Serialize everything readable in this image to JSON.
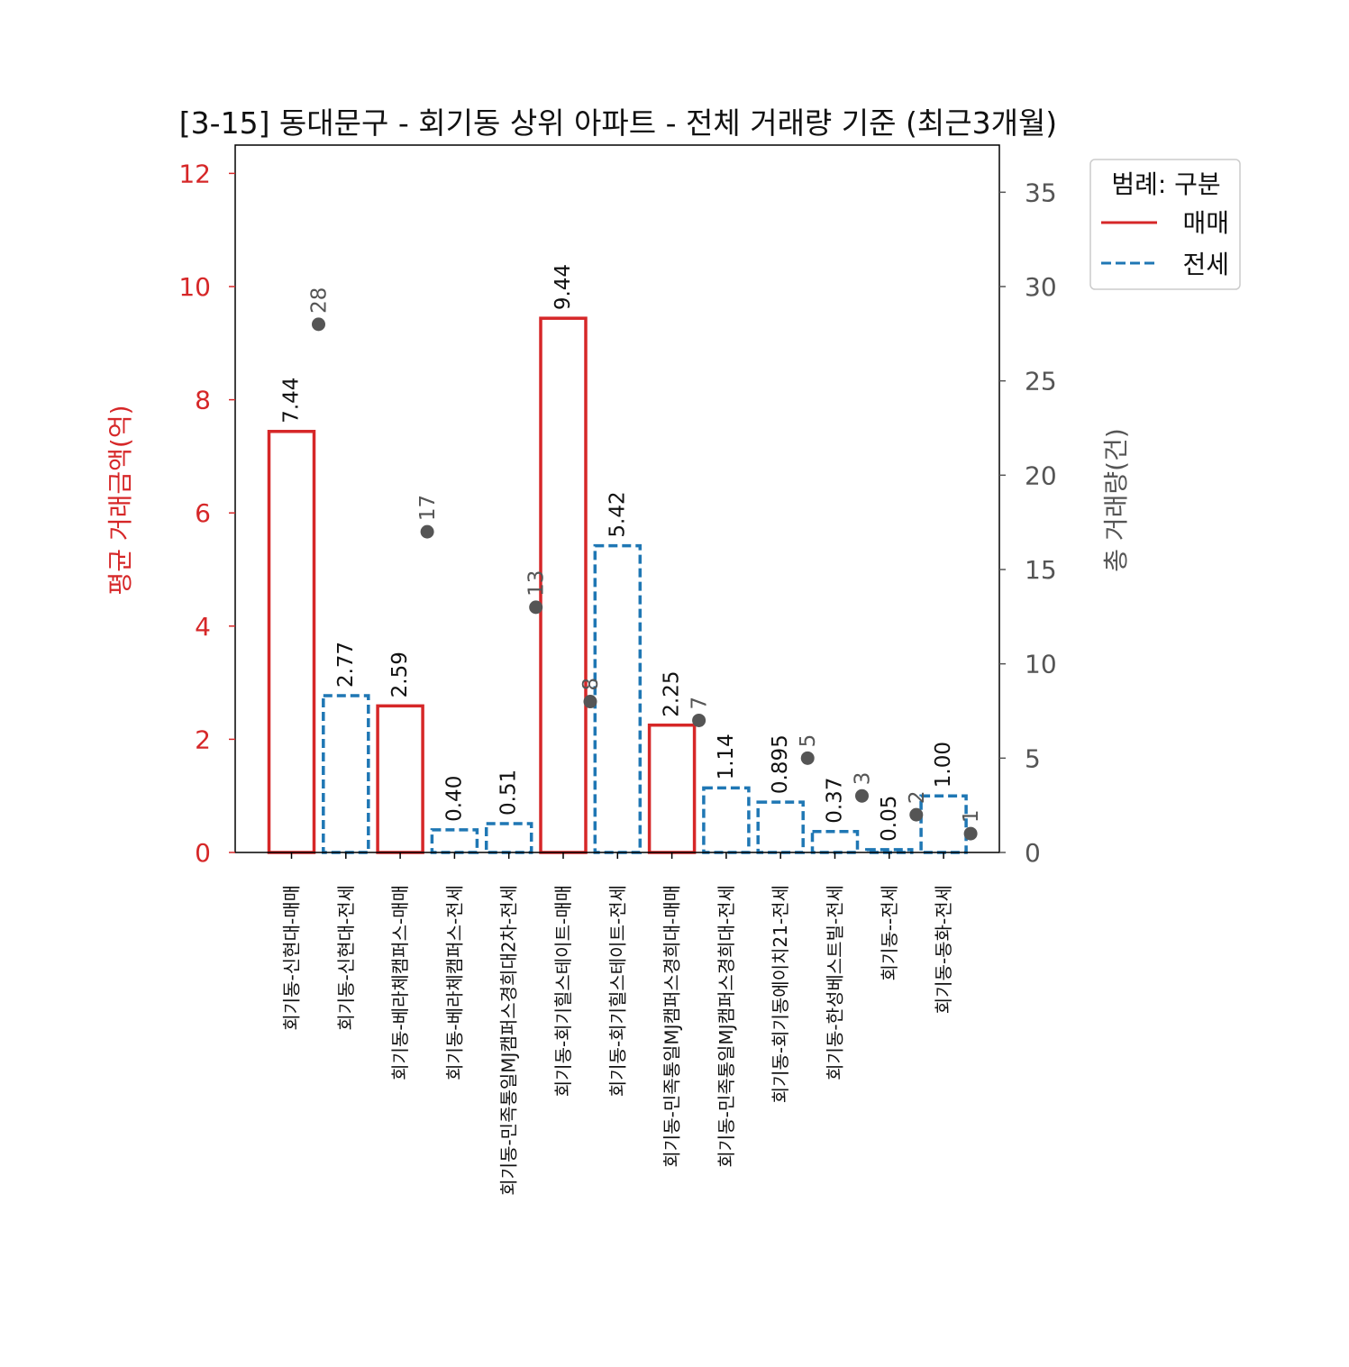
{
  "chart_data": {
    "type": "bar",
    "title": "[3-15] 동대문구 - 회기동 상위 아파트 - 전체 거래량 기준 (최근3개월)",
    "ylabel": "평균 거래금액(억)",
    "y2label": "총 거래량(건)",
    "ylim": [
      0,
      12.5
    ],
    "y2lim": [
      0,
      37.5
    ],
    "yticks": [
      0,
      2,
      4,
      6,
      8,
      10,
      12
    ],
    "y2ticks": [
      0,
      5,
      10,
      15,
      20,
      25,
      30,
      35
    ],
    "grid": false,
    "legend": {
      "title": "범례: 구분",
      "placement": "outside-top-right",
      "entries": [
        {
          "label": "매매",
          "color": "#d62728",
          "style": "solid"
        },
        {
          "label": "전세",
          "color": "#1f77b4",
          "style": "dashed"
        }
      ]
    },
    "colors": {
      "매매": "#d62728",
      "전세": "#1f77b4",
      "count_marker": "#555555",
      "left_axis": "#d62728",
      "right_axis": "#555555"
    },
    "categories": [
      "회기동-신현대-매매",
      "회기동-신현대-전세",
      "회기동-베라체캠퍼스-매매",
      "회기동-베라체캠퍼스-전세",
      "회기동-민족통일MJ캠퍼스경희대2차-전세",
      "회기동-회기힐스테이트-매매",
      "회기동-회기힐스테이트-전세",
      "회기동-민족통일MJ캠퍼스경희대-매매",
      "회기동-민족통일MJ캠퍼스경희대-전세",
      "회기동-회기동에이치21-전세",
      "회기동-한성베스트빌-전세",
      "회기동--전세",
      "회기동-동화-전세"
    ],
    "kinds": [
      "매매",
      "전세",
      "매매",
      "전세",
      "전세",
      "매매",
      "전세",
      "매매",
      "전세",
      "전세",
      "전세",
      "전세",
      "전세"
    ],
    "series": [
      {
        "name": "평균 거래금액(억)",
        "axis": "left",
        "values": [
          7.44,
          2.77,
          2.59,
          0.4,
          0.51,
          9.44,
          5.42,
          2.25,
          1.14,
          0.89,
          0.37,
          0.05,
          1.0
        ],
        "labels": [
          "7.44",
          "2.77",
          "2.59",
          "0.40",
          "0.51",
          "9.44",
          "5.42",
          "2.25",
          "1.14",
          "0.895",
          "0.37",
          "0.05",
          "1.00"
        ]
      },
      {
        "name": "총 거래량(건)",
        "axis": "right",
        "values": [
          28,
          null,
          17,
          null,
          13,
          8,
          null,
          7,
          null,
          5,
          3,
          2,
          1
        ],
        "labels": [
          "28",
          "",
          "17",
          "",
          "13",
          "8",
          "",
          "7",
          "",
          "5",
          "3",
          "2",
          "1"
        ]
      }
    ]
  }
}
